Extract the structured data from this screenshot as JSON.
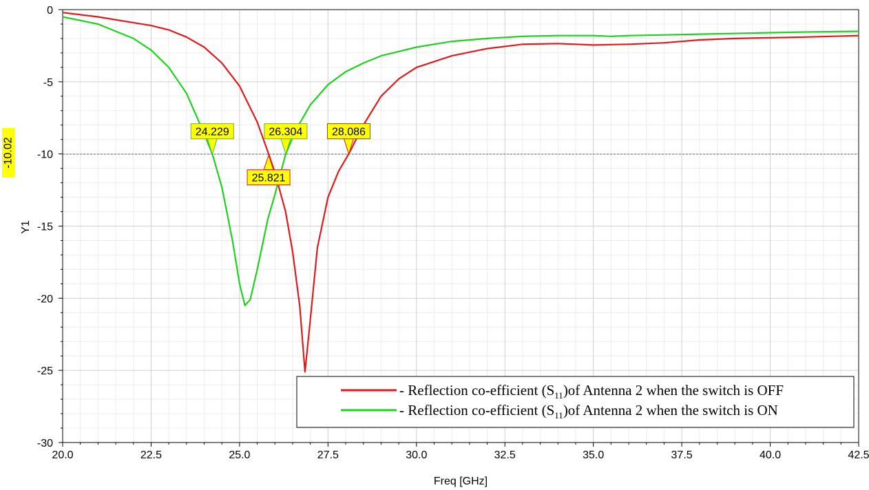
{
  "chart_data": {
    "type": "line",
    "xlabel": "Freq [GHz]",
    "ylabel": "Y1",
    "xlim": [
      20.0,
      42.5
    ],
    "ylim": [
      -30,
      0
    ],
    "x_ticks": [
      "20.0",
      "22.5",
      "25.0",
      "27.5",
      "30.0",
      "32.5",
      "35.0",
      "37.5",
      "40.0",
      "42.5"
    ],
    "y_ticks": [
      "0",
      "-5",
      "-10",
      "-15",
      "-20",
      "-25",
      "-30"
    ],
    "grid": true,
    "reference_line": {
      "y": -10.02,
      "label": "-10.02"
    },
    "series": [
      {
        "name": "- Reflection co-efficient (S11)of Antenna 2 when the switch is OFF",
        "color": "#e0191b",
        "x": [
          20.0,
          21.0,
          22.0,
          22.5,
          23.0,
          23.5,
          24.0,
          24.5,
          25.0,
          25.5,
          25.821,
          26.0,
          26.3,
          26.5,
          26.7,
          26.85,
          27.0,
          27.2,
          27.5,
          27.8,
          28.086,
          28.5,
          29.0,
          29.5,
          30.0,
          31.0,
          32.0,
          33.0,
          34.0,
          35.0,
          36.0,
          37.0,
          38.0,
          39.0,
          40.0,
          41.0,
          42.5
        ],
        "values": [
          -0.2,
          -0.5,
          -0.9,
          -1.1,
          -1.4,
          -1.9,
          -2.6,
          -3.7,
          -5.3,
          -7.8,
          -10.0,
          -11.3,
          -14.0,
          -16.8,
          -20.5,
          -25.1,
          -21.5,
          -16.5,
          -13.0,
          -11.2,
          -10.0,
          -8.0,
          -6.0,
          -4.8,
          -4.0,
          -3.2,
          -2.7,
          -2.4,
          -2.35,
          -2.45,
          -2.4,
          -2.3,
          -2.1,
          -2.0,
          -1.95,
          -1.9,
          -1.8
        ]
      },
      {
        "name": "- Reflection co-efficient (S11)of Antenna 2 when the switch is ON",
        "color": "#1ed11e",
        "x": [
          20.0,
          21.0,
          22.0,
          22.5,
          23.0,
          23.5,
          24.0,
          24.229,
          24.5,
          24.8,
          25.0,
          25.15,
          25.3,
          25.5,
          25.8,
          26.0,
          26.304,
          26.6,
          27.0,
          27.5,
          28.0,
          28.5,
          29.0,
          29.5,
          30.0,
          31.0,
          32.0,
          33.0,
          34.0,
          35.0,
          35.5,
          36.0,
          37.0,
          38.0,
          39.0,
          40.0,
          41.0,
          42.5
        ],
        "values": [
          -0.5,
          -1.0,
          -2.0,
          -2.8,
          -4.0,
          -5.8,
          -8.6,
          -10.0,
          -12.3,
          -16.0,
          -19.0,
          -20.5,
          -20.1,
          -18.0,
          -14.5,
          -12.8,
          -10.0,
          -8.3,
          -6.6,
          -5.2,
          -4.3,
          -3.7,
          -3.2,
          -2.9,
          -2.6,
          -2.2,
          -2.0,
          -1.85,
          -1.8,
          -1.8,
          -1.85,
          -1.8,
          -1.75,
          -1.7,
          -1.65,
          -1.6,
          -1.55,
          -1.5
        ]
      }
    ],
    "markers": [
      {
        "label": "24.229",
        "x": 24.229,
        "y": -10.0,
        "box": "above",
        "border": "#3cc83c"
      },
      {
        "label": "26.304",
        "x": 26.304,
        "y": -10.0,
        "box": "above",
        "border": "#3cc83c"
      },
      {
        "label": "28.086",
        "x": 28.086,
        "y": -10.0,
        "box": "above",
        "border": "#e0191b"
      },
      {
        "label": "25.821",
        "x": 25.821,
        "y": -10.0,
        "box": "below",
        "border": "#e0191b"
      }
    ],
    "legend": {
      "placement": "bottom-right",
      "entries": [
        {
          "prefix": "- Reflection co-efficient (S",
          "sub": "11",
          "suffix": ")of Antenna 2 when the switch is OFF",
          "color": "#e0191b"
        },
        {
          "prefix": "- Reflection co-efficient (S",
          "sub": "11",
          "suffix": ")of Antenna 2 when the switch is ON",
          "color": "#1ed11e"
        }
      ]
    }
  }
}
